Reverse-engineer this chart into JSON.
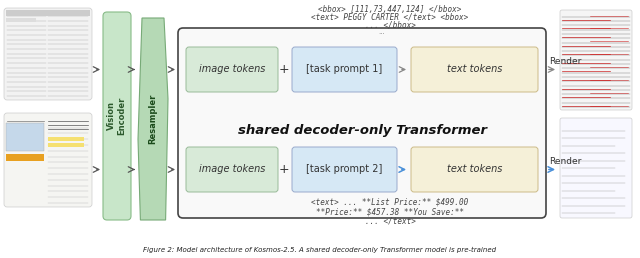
{
  "bg_color": "#ffffff",
  "green_encoder": "#c8e6c9",
  "green_resampler": "#b5d9b5",
  "blue_task": "#d6e8f5",
  "green_img_tokens": "#d8ead8",
  "yellow_text_tokens": "#f5f0d8",
  "decoder_bg": "#f9f9f9",
  "decoder_border": "#444444",
  "arrow_gray": "#888888",
  "arrow_blue": "#4a90d9",
  "label_vision_encoder": "Vision\nEncoder",
  "label_resampler": "Resampler",
  "label_image_tokens": "image tokens",
  "label_task_prompt_1": "[task prompt 1]",
  "label_task_prompt_2": "[task prompt 2]",
  "label_text_tokens": "text tokens",
  "label_shared_decoder": "shared decoder-only Transformer",
  "label_render": "Render",
  "bbox_line1": "<bbox> [111,73,447,124] </bbox>",
  "bbox_line2": "<text> PEGGY CARTER </text> <bbox>",
  "bbox_line3": "... </bbox>",
  "dots_mid": "...",
  "text_line1": "<text> ... **List Price:** $499.00",
  "text_line2": "**Price:** $457.38 **You Save:**",
  "text_line3": "... </text>",
  "caption": "Figure 2: Model architecture of Kosmos-2.5. A shared decoder-only Transformer model is pre-trained"
}
